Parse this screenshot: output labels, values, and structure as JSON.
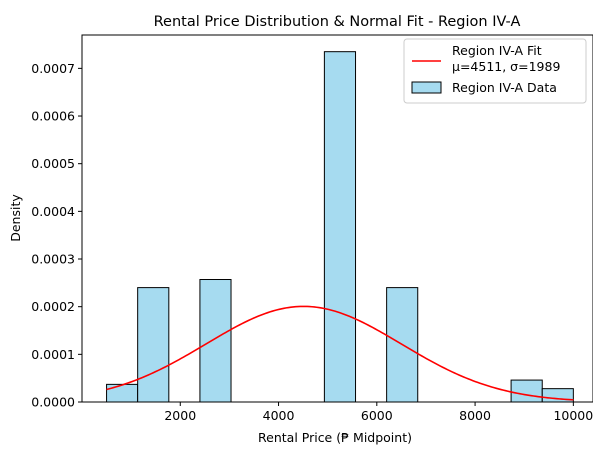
{
  "chart_data": {
    "type": "bar",
    "title": "Rental Price Distribution & Normal Fit - Region IV-A",
    "xlabel": "Rental Price (₱ Midpoint)",
    "ylabel": "Density",
    "xlim": [
      0,
      10400
    ],
    "ylim": [
      0,
      0.00077
    ],
    "x_ticks": [
      2000,
      4000,
      6000,
      8000,
      10000
    ],
    "x_tick_labels": [
      "2000",
      "4000",
      "6000",
      "8000",
      "10000"
    ],
    "y_ticks": [
      0,
      0.0001,
      0.0002,
      0.0003,
      0.0004,
      0.0005,
      0.0006,
      0.0007
    ],
    "y_tick_labels": [
      "0.0000",
      "0.0001",
      "0.0002",
      "0.0003",
      "0.0004",
      "0.0005",
      "0.0006",
      "0.0007"
    ],
    "grid": false,
    "legend_position": "top-right",
    "histogram": {
      "name": "Region IV-A Data",
      "color": "#a6dbf0",
      "edge_color": "#000000",
      "bins": [
        {
          "x0": 500,
          "x1": 1133,
          "density": 3.7e-05
        },
        {
          "x0": 1133,
          "x1": 1767,
          "density": 0.00024
        },
        {
          "x0": 1767,
          "x1": 2400,
          "density": 0
        },
        {
          "x0": 2400,
          "x1": 3033,
          "density": 0.000257
        },
        {
          "x0": 3033,
          "x1": 3667,
          "density": 0
        },
        {
          "x0": 3667,
          "x1": 4300,
          "density": 0
        },
        {
          "x0": 4300,
          "x1": 4933,
          "density": 0
        },
        {
          "x0": 4933,
          "x1": 5567,
          "density": 0.000735
        },
        {
          "x0": 5567,
          "x1": 6200,
          "density": 0
        },
        {
          "x0": 6200,
          "x1": 6833,
          "density": 0.00024
        },
        {
          "x0": 6833,
          "x1": 7467,
          "density": 0
        },
        {
          "x0": 7467,
          "x1": 8100,
          "density": 0
        },
        {
          "x0": 8100,
          "x1": 8733,
          "density": 0
        },
        {
          "x0": 8733,
          "x1": 9367,
          "density": 4.6e-05
        },
        {
          "x0": 9367,
          "x1": 10000,
          "density": 2.8e-05
        }
      ]
    },
    "fit": {
      "name": "Region IV-A Fit",
      "label_line2": "μ=4511, σ=1989",
      "mu": 4511,
      "sigma": 1989,
      "x_range": [
        500,
        10000
      ],
      "color": "#ff0000"
    }
  }
}
